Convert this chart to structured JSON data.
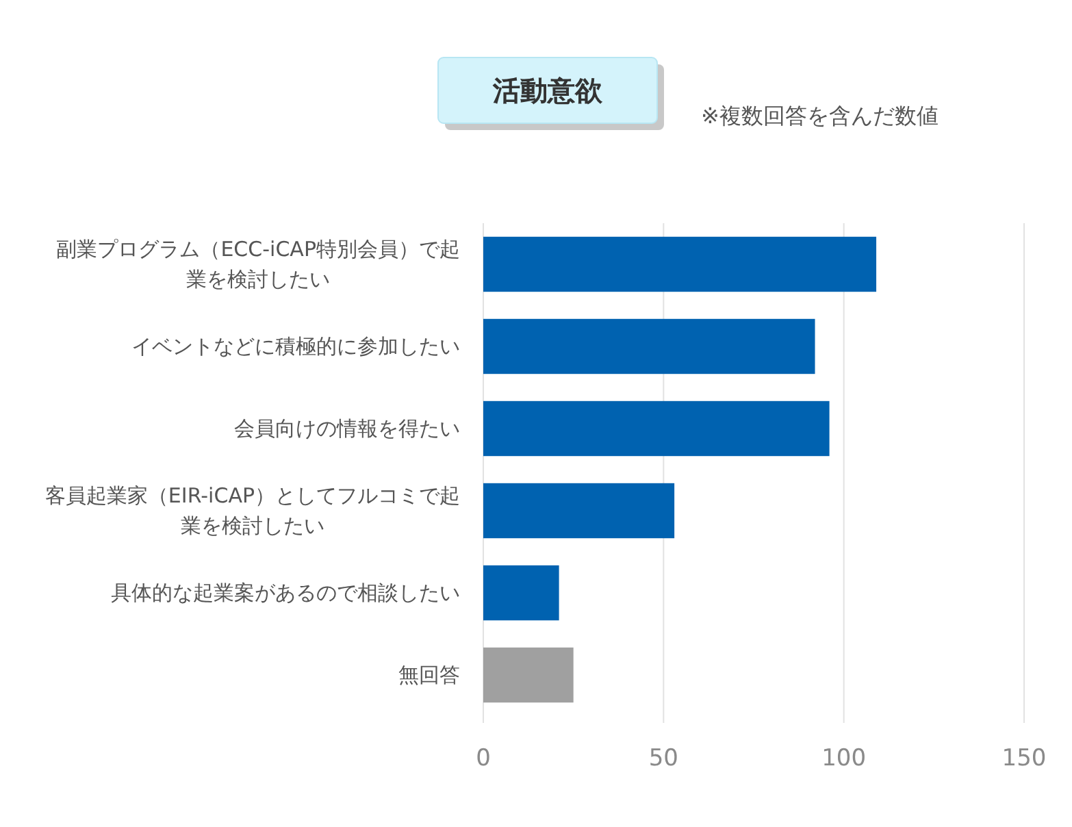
{
  "chart_data": {
    "type": "bar",
    "orientation": "horizontal",
    "title": "活動意欲",
    "annotations": [
      "※複数回答を含んだ数値"
    ],
    "categories": [
      "副業プログラム（ECC-iCAP特別会員）で起業を検討したい",
      "イベントなどに積極的に参加したい",
      "会員向けの情報を得たい",
      "客員起業家（EIR-iCAP）としてフルコミで起業を検討したい",
      "具体的な起業案があるので相談したい",
      "無回答"
    ],
    "values": [
      109,
      92,
      96,
      53,
      21,
      25
    ],
    "colors": [
      "#0062b0",
      "#0062b0",
      "#0062b0",
      "#0062b0",
      "#0062b0",
      "#a0a0a0"
    ],
    "xlim": [
      0,
      150
    ],
    "xticks": [
      0,
      50,
      100,
      150
    ],
    "grid": "x"
  }
}
